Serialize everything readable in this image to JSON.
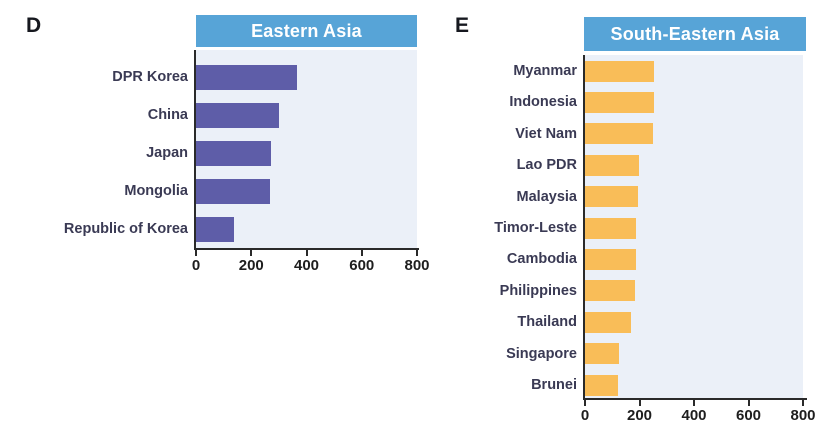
{
  "figure": {
    "background": "#ffffff",
    "description_visible_text_only": true
  },
  "colors": {
    "header_bg": "#57a4d7",
    "header_text": "#ffffff",
    "plot_bg": "#ebf0f8",
    "axis": "#2a2a2a",
    "tick_label": "#1e1e1e",
    "category_label": "#3a3a54",
    "panel_letter": "#16181f",
    "bar_purple": "#5e5da8",
    "bar_orange": "#f9bd58"
  },
  "chart_data": [
    {
      "type": "bar",
      "orientation": "horizontal",
      "panel_letter": "D",
      "title": "Eastern Asia",
      "categories": [
        "DPR Korea",
        "China",
        "Japan",
        "Mongolia",
        "Republic of Korea"
      ],
      "values": [
        365,
        300,
        270,
        268,
        138
      ],
      "xlim": [
        0,
        800
      ],
      "xticks": [
        0,
        200,
        400,
        600,
        800
      ],
      "bar_color": "#5e5da8",
      "grid": false,
      "legend": "none",
      "xlabel": "",
      "ylabel": ""
    },
    {
      "type": "bar",
      "orientation": "horizontal",
      "panel_letter": "E",
      "title": "South-Eastern Asia",
      "categories": [
        "Myanmar",
        "Indonesia",
        "Viet Nam",
        "Lao PDR",
        "Malaysia",
        "Timor-Leste",
        "Cambodia",
        "Philippines",
        "Thailand",
        "Singapore",
        "Brunei"
      ],
      "values": [
        255,
        253,
        250,
        198,
        196,
        188,
        186,
        184,
        168,
        126,
        121
      ],
      "xlim": [
        0,
        800
      ],
      "xticks": [
        0,
        200,
        400,
        600,
        800
      ],
      "bar_color": "#f9bd58",
      "grid": false,
      "legend": "none",
      "xlabel": "",
      "ylabel": ""
    }
  ]
}
